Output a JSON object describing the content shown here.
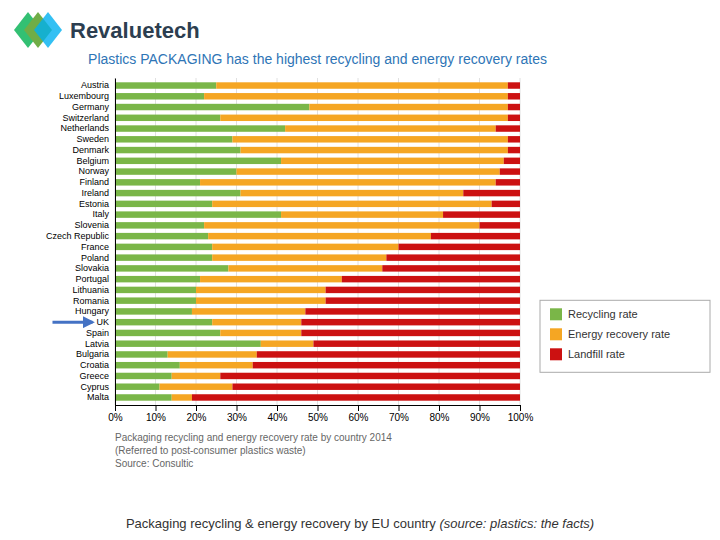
{
  "chart_data": {
    "type": "bar",
    "orientation": "horizontal",
    "stacked": true,
    "title": "Plastics PACKAGING has the highest recycling and energy recovery rates",
    "subtitle": [
      "Packaging recycling and energy recovery rate by country 2014",
      "(Referred to post-consumer plastics waste)",
      "Source: Consultic"
    ],
    "annotations": [
      {
        "text": "Revaluetech"
      },
      {
        "text": "Packaging recycling & energy recovery by EU country "
      },
      {
        "text": "(source: plastics: the facts)"
      },
      {
        "marker": "arrow",
        "category": "UK"
      }
    ],
    "categories": [
      "Austria",
      "Luxembourg",
      "Germany",
      "Switzerland",
      "Netherlands",
      "Sweden",
      "Denmark",
      "Belgium",
      "Norway",
      "Finland",
      "Ireland",
      "Estonia",
      "Italy",
      "Slovenia",
      "Czech Republic",
      "France",
      "Poland",
      "Slovakia",
      "Portugal",
      "Lithuania",
      "Romania",
      "Hungary",
      "UK",
      "Spain",
      "Latvia",
      "Bulgaria",
      "Croatia",
      "Greece",
      "Cyprus",
      "Malta"
    ],
    "series": [
      {
        "name": "Recycling rate",
        "color": "#7ab648",
        "values": [
          25,
          22,
          48,
          26,
          42,
          29,
          31,
          41,
          30,
          21,
          31,
          24,
          41,
          22,
          23,
          24,
          24,
          28,
          21,
          20,
          20,
          19,
          24,
          26,
          36,
          13,
          16,
          14,
          11,
          14
        ]
      },
      {
        "name": "Energy recovery rate",
        "color": "#f5a623",
        "values": [
          72,
          75,
          49,
          71,
          52,
          68,
          66,
          55,
          65,
          73,
          55,
          69,
          40,
          68,
          55,
          46,
          43,
          38,
          35,
          32,
          32,
          28,
          22,
          20,
          13,
          22,
          18,
          12,
          18,
          5
        ]
      },
      {
        "name": "Landfill rate",
        "color": "#cc1111",
        "values": [
          3,
          3,
          3,
          3,
          6,
          3,
          3,
          4,
          5,
          6,
          14,
          7,
          19,
          10,
          22,
          30,
          33,
          34,
          44,
          48,
          48,
          53,
          54,
          54,
          51,
          65,
          66,
          74,
          71,
          81
        ]
      }
    ],
    "xlim": [
      0,
      100
    ],
    "xticks": [
      {
        "value": 0,
        "label": "0%"
      },
      {
        "value": 10,
        "label": "10%"
      },
      {
        "value": 20,
        "label": "20%"
      },
      {
        "value": 30,
        "label": "30%"
      },
      {
        "value": 40,
        "label": "40%"
      },
      {
        "value": 50,
        "label": "50%"
      },
      {
        "value": 60,
        "label": "60%"
      },
      {
        "value": 70,
        "label": "70%"
      },
      {
        "value": 80,
        "label": "80%"
      },
      {
        "value": 90,
        "label": "90%"
      },
      {
        "value": 100,
        "label": "100%"
      }
    ],
    "grid": true,
    "legend": "right"
  }
}
